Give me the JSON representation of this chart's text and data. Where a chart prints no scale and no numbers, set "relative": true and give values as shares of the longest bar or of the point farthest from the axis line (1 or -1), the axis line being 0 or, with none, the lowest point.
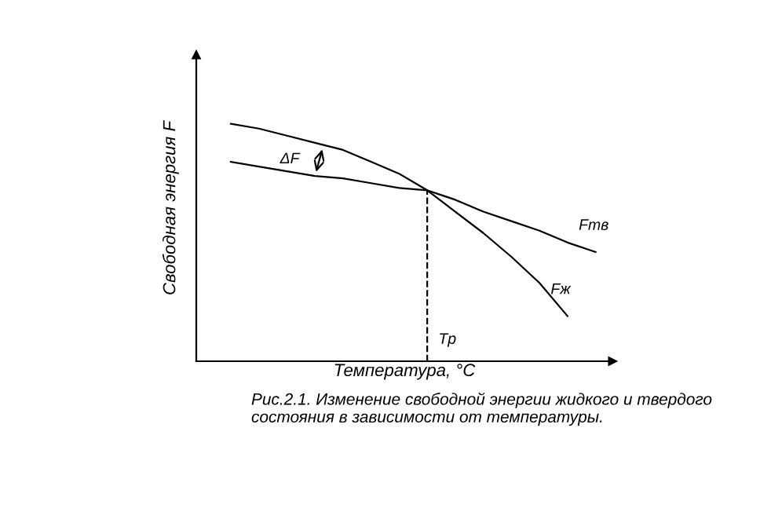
{
  "chart_data": {
    "type": "line",
    "relative": true,
    "xlabel": "Температура, °С",
    "ylabel": "Свободная энергия F",
    "categories": [
      null,
      null,
      null,
      null,
      null,
      null,
      null,
      null,
      null,
      null,
      null,
      null,
      null,
      null
    ],
    "series": [
      {
        "name": "Fтв",
        "color": "#000000",
        "values": [
          0.84,
          0.82,
          0.8,
          0.78,
          0.77,
          0.75,
          0.73,
          0.72,
          0.68,
          0.63,
          0.59,
          0.55,
          0.5,
          0.46
        ]
      },
      {
        "name": "Fж",
        "color": "#000000",
        "values": [
          1.0,
          0.98,
          0.95,
          0.92,
          0.89,
          0.84,
          0.79,
          0.72,
          0.63,
          0.54,
          0.44,
          0.33,
          0.19,
          null
        ]
      }
    ],
    "annotations": [
      "ΔF",
      "Tр",
      "Рис.2.1. Изменение свободной энергии жидкого и твердого состояния в зависимости от температуры."
    ],
    "legend": false,
    "marker": "none",
    "line_style": "solid"
  }
}
